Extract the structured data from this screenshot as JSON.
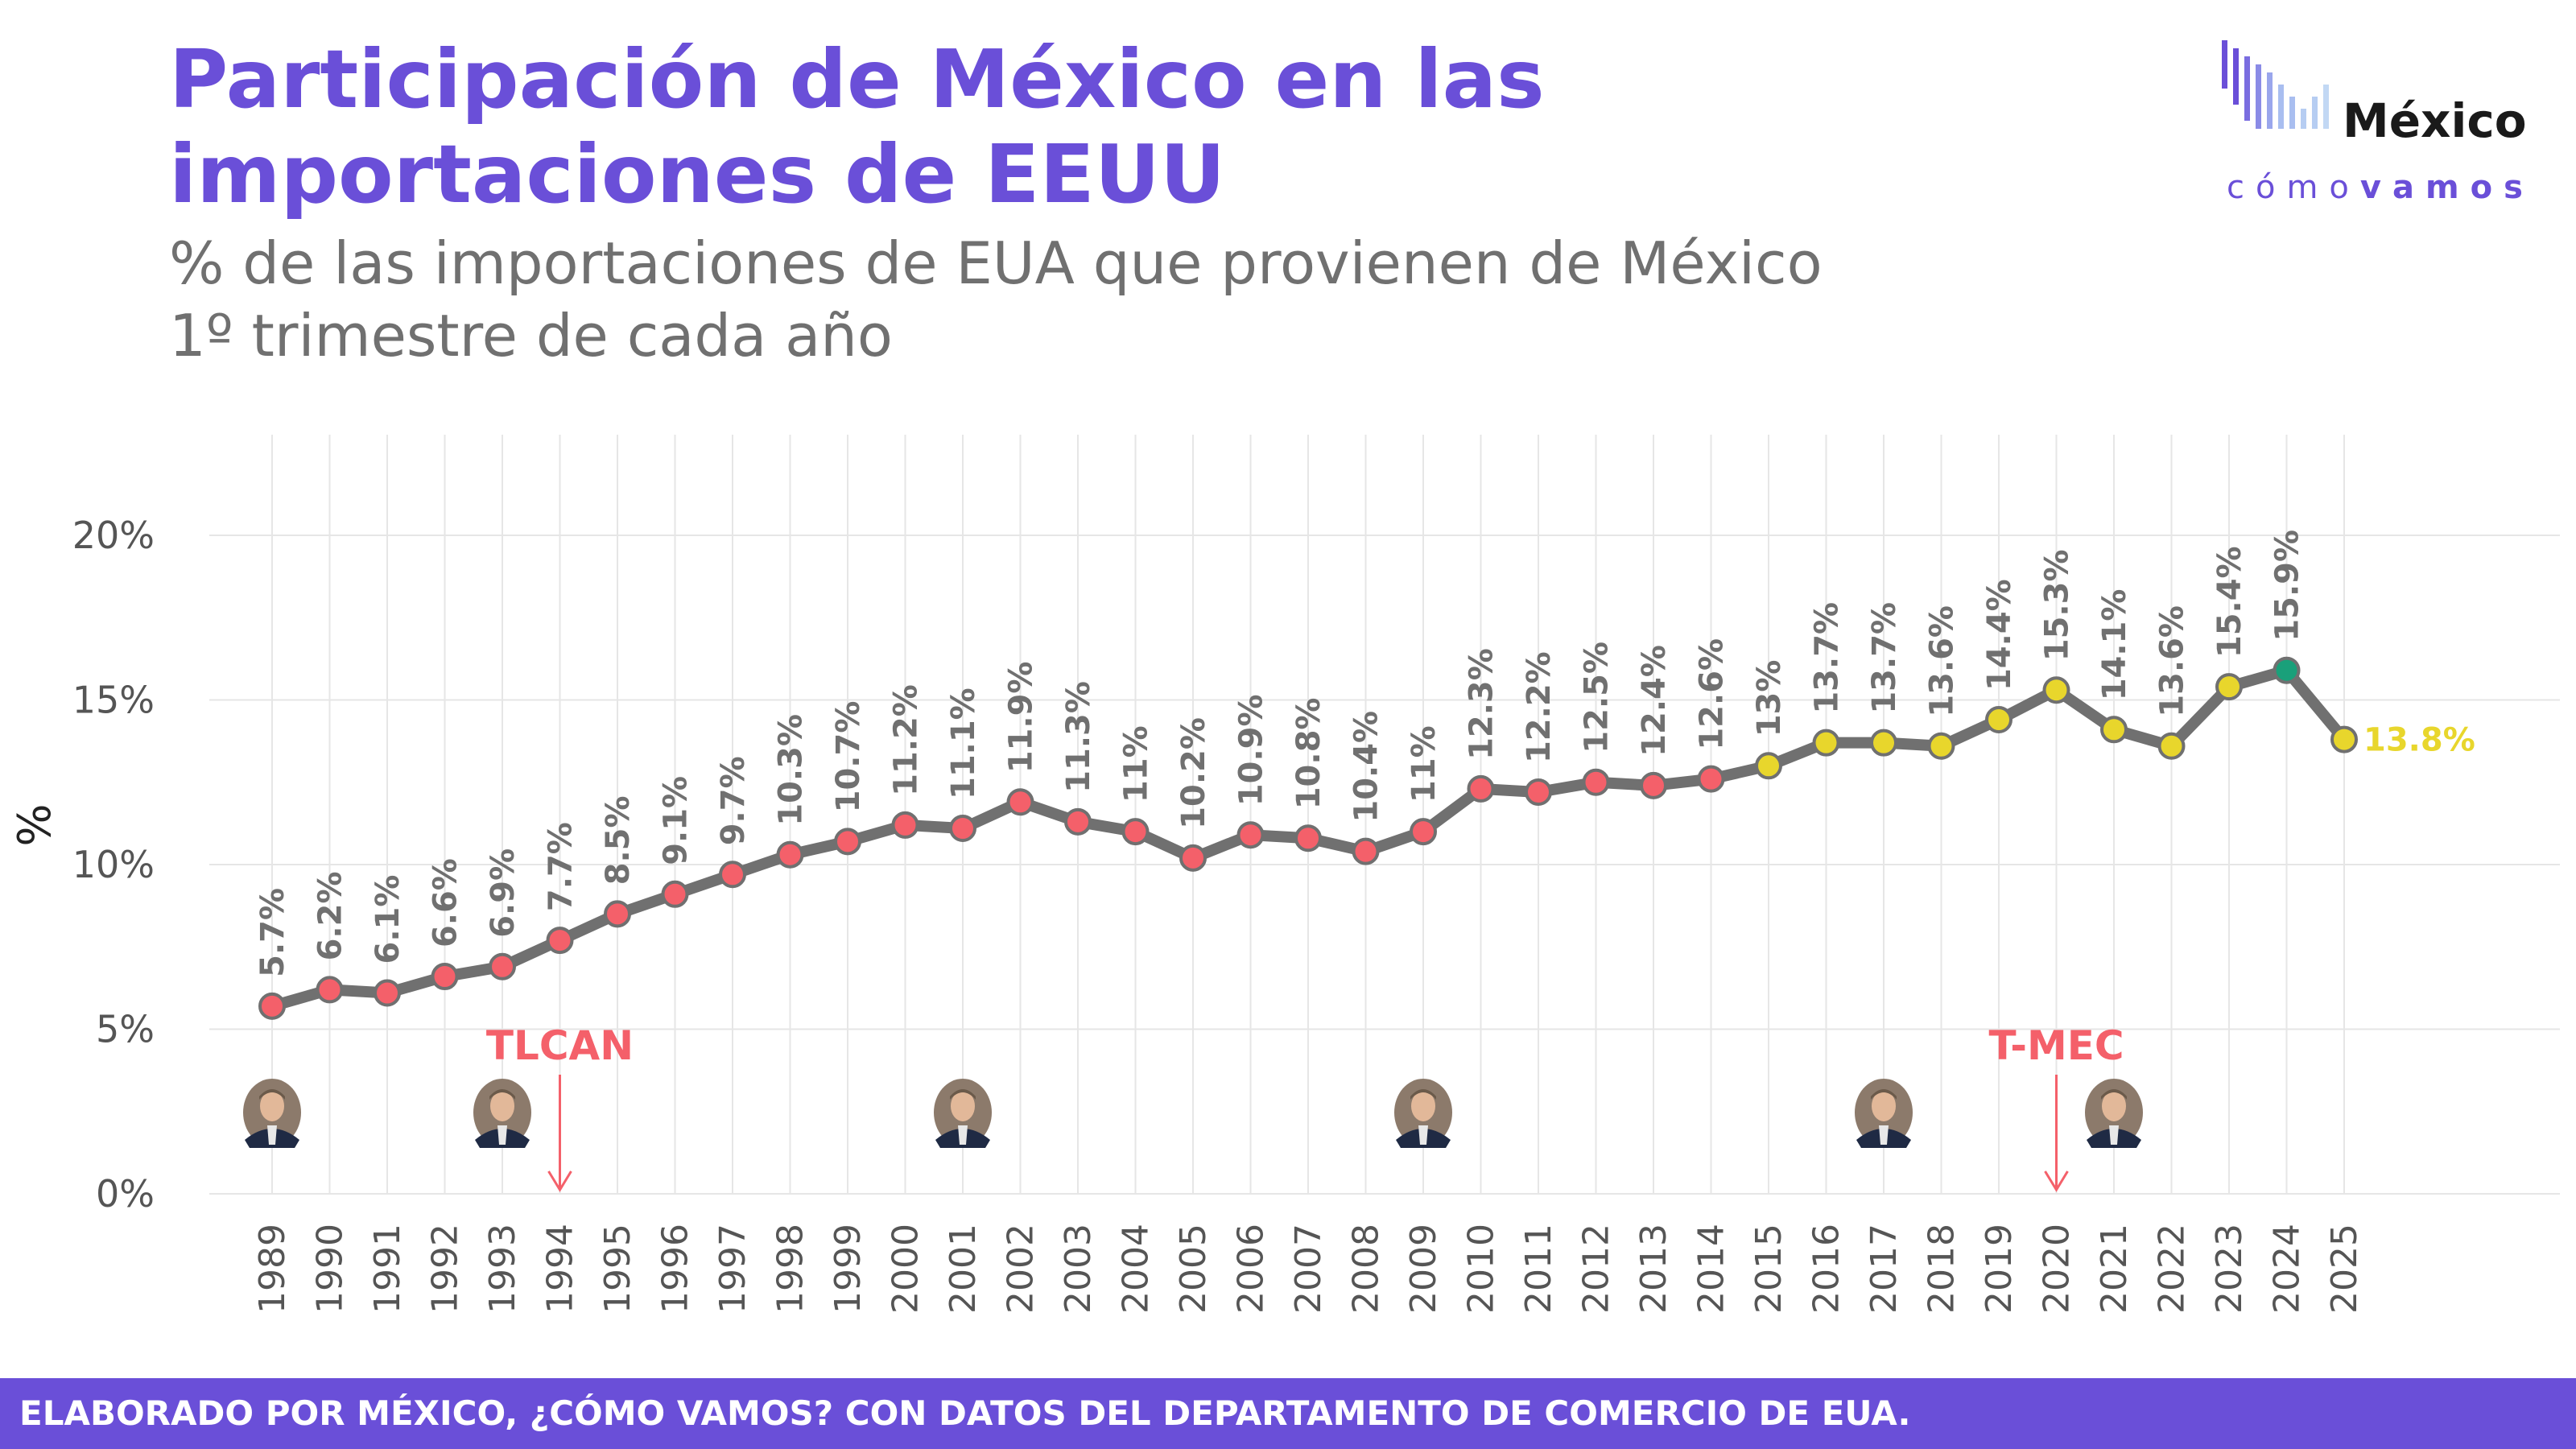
{
  "header": {
    "title": "Participación de México en las importaciones de EEUU",
    "subtitle_line1": "% de las importaciones de EUA que provienen de México",
    "subtitle_line2": "1º trimestre de cada año"
  },
  "logo": {
    "word": "México",
    "sub_light": "cómo",
    "sub_bold": "vamos"
  },
  "footer": {
    "text": "ELABORADO POR MÉXICO, ¿CÓMO VAMOS? CON DATOS DEL DEPARTAMENTO DE COMERCIO DE EUA."
  },
  "colors": {
    "accent": "#6a4fd8",
    "line": "#707070",
    "grid": "#e6e6e6",
    "point_red": "#f4606a",
    "point_yellow": "#e8d62c",
    "point_green": "#1aa07a",
    "annotation": "#f4606a",
    "label": "#707070"
  },
  "chart_data": {
    "type": "line",
    "ylabel": "%",
    "ylim": [
      0,
      20
    ],
    "yticks": [
      "0%",
      "5%",
      "10%",
      "15%",
      "20%"
    ],
    "grid": true,
    "x": [
      "1989",
      "1990",
      "1991",
      "1992",
      "1993",
      "1994",
      "1995",
      "1996",
      "1997",
      "1998",
      "1999",
      "2000",
      "2001",
      "2002",
      "2003",
      "2004",
      "2005",
      "2006",
      "2007",
      "2008",
      "2009",
      "2010",
      "2011",
      "2012",
      "2013",
      "2014",
      "2015",
      "2016",
      "2017",
      "2018",
      "2019",
      "2020",
      "2021",
      "2022",
      "2023",
      "2024",
      "2025"
    ],
    "values": [
      5.7,
      6.2,
      6.1,
      6.6,
      6.9,
      7.7,
      8.5,
      9.1,
      9.7,
      10.3,
      10.7,
      11.2,
      11.1,
      11.9,
      11.3,
      11.0,
      10.2,
      10.9,
      10.8,
      10.4,
      11.0,
      12.3,
      12.2,
      12.5,
      12.4,
      12.6,
      13.0,
      13.7,
      13.7,
      13.6,
      14.4,
      15.3,
      14.1,
      13.6,
      15.4,
      15.9,
      13.8
    ],
    "labels": [
      "5.7%",
      "6.2%",
      "6.1%",
      "6.6%",
      "6.9%",
      "7.7%",
      "8.5%",
      "9.1%",
      "9.7%",
      "10.3%",
      "10.7%",
      "11.2%",
      "11.1%",
      "11.9%",
      "11.3%",
      "11%",
      "10.2%",
      "10.9%",
      "10.8%",
      "10.4%",
      "11%",
      "12.3%",
      "12.2%",
      "12.5%",
      "12.4%",
      "12.6%",
      "13%",
      "13.7%",
      "13.7%",
      "13.6%",
      "14.4%",
      "15.3%",
      "14.1%",
      "13.6%",
      "15.4%",
      "15.9%",
      "13.8%"
    ],
    "point_colors": [
      "red",
      "red",
      "red",
      "red",
      "red",
      "red",
      "red",
      "red",
      "red",
      "red",
      "red",
      "red",
      "red",
      "red",
      "red",
      "red",
      "red",
      "red",
      "red",
      "red",
      "red",
      "red",
      "red",
      "red",
      "red",
      "red",
      "yellow",
      "yellow",
      "yellow",
      "yellow",
      "yellow",
      "yellow",
      "yellow",
      "yellow",
      "yellow",
      "green",
      "yellow"
    ],
    "annotations": [
      {
        "label": "TLCAN",
        "year": "1994"
      },
      {
        "label": "T-MEC",
        "year": "2020"
      }
    ],
    "portraits": [
      "1989",
      "1993",
      "2001",
      "2009",
      "2017",
      "2021"
    ]
  }
}
